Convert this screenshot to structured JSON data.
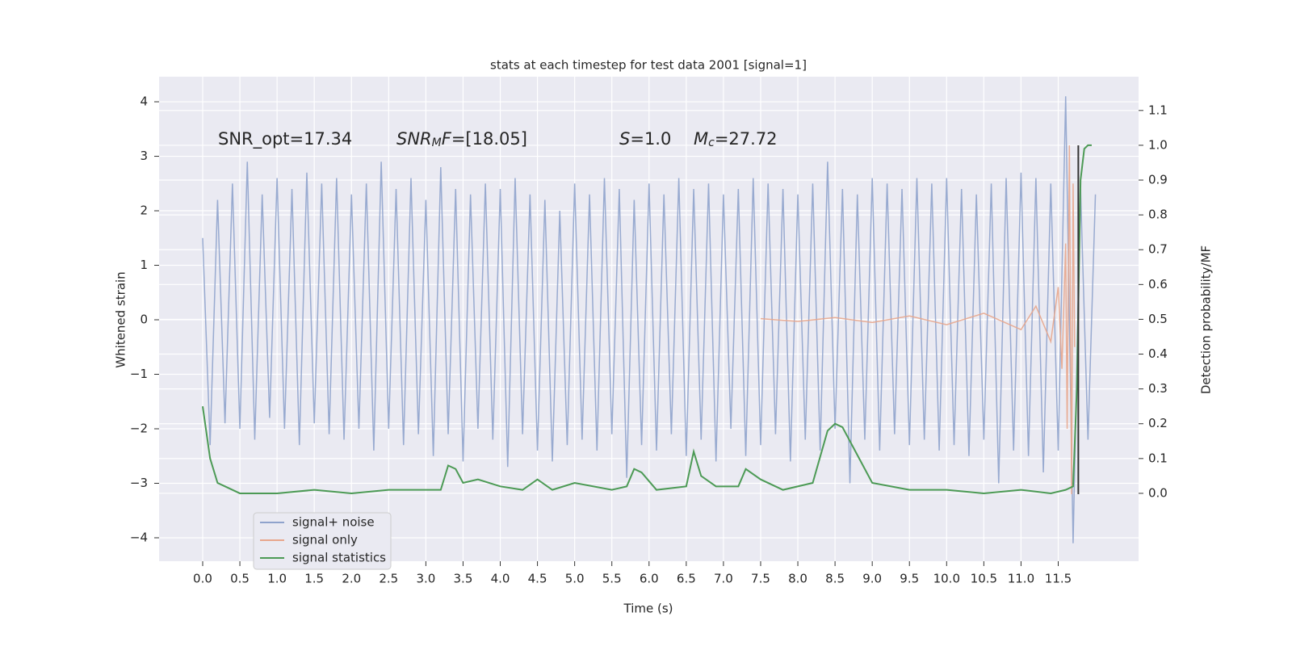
{
  "chart_data": {
    "type": "line",
    "title": "stats at each timestep for test data 2001 [signal=1]",
    "xlabel": "Time (s)",
    "ylabel": "Whitened strain",
    "y2label": "Detection probability/MF",
    "annotations": [
      [
        {
          "text": "SNR_opt=17.34"
        }
      ],
      [
        {
          "text": "SNR",
          "italic": true
        },
        {
          "text": "M",
          "italic": true,
          "sub": true
        },
        {
          "text": "F",
          "italic": true
        },
        {
          "text": "=[18.05]"
        }
      ],
      [
        {
          "text": "S",
          "italic": true
        },
        {
          "text": "=1.0"
        }
      ],
      [
        {
          "text": "M",
          "italic": true
        },
        {
          "text": "c",
          "italic": true,
          "sub": true
        },
        {
          "text": "=27.72"
        }
      ]
    ],
    "xlim": [
      -0.586,
      12.58
    ],
    "ylim": [
      -4.43,
      4.46
    ],
    "y2lim": [
      -0.195,
      1.197
    ],
    "grid": true,
    "legend": "lower left",
    "background": "#eaeaf2",
    "xticks": [
      {
        "value": 0,
        "label": "0.0"
      },
      {
        "value": 0.5,
        "label": "0.5"
      },
      {
        "value": 1,
        "label": "1.0"
      },
      {
        "value": 1.5,
        "label": "1.5"
      },
      {
        "value": 2,
        "label": "2.0"
      },
      {
        "value": 2.5,
        "label": "2.5"
      },
      {
        "value": 3,
        "label": "3.0"
      },
      {
        "value": 3.5,
        "label": "3.5"
      },
      {
        "value": 4,
        "label": "4.0"
      },
      {
        "value": 4.5,
        "label": "4.5"
      },
      {
        "value": 5,
        "label": "5.0"
      },
      {
        "value": 5.5,
        "label": "5.5"
      },
      {
        "value": 6,
        "label": "6.0"
      },
      {
        "value": 6.5,
        "label": "6.5"
      },
      {
        "value": 7,
        "label": "7.0"
      },
      {
        "value": 7.5,
        "label": "7.5"
      },
      {
        "value": 8,
        "label": "8.0"
      },
      {
        "value": 8.5,
        "label": "8.5"
      },
      {
        "value": 9,
        "label": "9.0"
      },
      {
        "value": 9.5,
        "label": "9.5"
      },
      {
        "value": 10,
        "label": "10.0"
      },
      {
        "value": 10.5,
        "label": "10.5"
      },
      {
        "value": 11,
        "label": "11.0"
      },
      {
        "value": 11.5,
        "label": "11.5"
      }
    ],
    "yticks": [
      {
        "value": -4,
        "label": "−4"
      },
      {
        "value": -3,
        "label": "−3"
      },
      {
        "value": -2,
        "label": "−2"
      },
      {
        "value": -1,
        "label": "−1"
      },
      0,
      1,
      2,
      3,
      4
    ],
    "y2ticks": [
      {
        "value": 0,
        "label": "0.0"
      },
      {
        "value": 0.1,
        "label": "0.1"
      },
      {
        "value": 0.2,
        "label": "0.2"
      },
      {
        "value": 0.3,
        "label": "0.3"
      },
      {
        "value": 0.4,
        "label": "0.4"
      },
      {
        "value": 0.5,
        "label": "0.5"
      },
      {
        "value": 0.6,
        "label": "0.6"
      },
      {
        "value": 0.7,
        "label": "0.7"
      },
      {
        "value": 0.8,
        "label": "0.8"
      },
      {
        "value": 0.9,
        "label": "0.9"
      },
      {
        "value": 1.0,
        "label": "1.0"
      },
      {
        "value": 1.1,
        "label": "1.1"
      }
    ],
    "series": [
      {
        "name": "signal+ noise",
        "color": "#8fa3cc",
        "x": [
          0,
          0.1,
          0.2,
          0.3,
          0.4,
          0.5,
          0.6,
          0.7,
          0.8,
          0.9,
          1,
          1.1,
          1.2,
          1.3,
          1.4,
          1.5,
          1.6,
          1.7,
          1.8,
          1.9,
          2,
          2.1,
          2.2,
          2.3,
          2.4,
          2.5,
          2.6,
          2.7,
          2.8,
          2.9,
          3,
          3.1,
          3.2,
          3.3,
          3.4,
          3.5,
          3.6,
          3.7,
          3.8,
          3.9,
          4,
          4.1,
          4.2,
          4.3,
          4.4,
          4.5,
          4.6,
          4.7,
          4.8,
          4.9,
          5,
          5.1,
          5.2,
          5.3,
          5.4,
          5.5,
          5.6,
          5.7,
          5.8,
          5.9,
          6,
          6.1,
          6.2,
          6.3,
          6.4,
          6.5,
          6.6,
          6.7,
          6.8,
          6.9,
          7,
          7.1,
          7.2,
          7.3,
          7.4,
          7.5,
          7.6,
          7.7,
          7.8,
          7.9,
          8,
          8.1,
          8.2,
          8.3,
          8.4,
          8.5,
          8.6,
          8.7,
          8.8,
          8.9,
          9,
          9.1,
          9.2,
          9.3,
          9.4,
          9.5,
          9.6,
          9.7,
          9.8,
          9.9,
          10,
          10.1,
          10.2,
          10.3,
          10.4,
          10.5,
          10.6,
          10.7,
          10.8,
          10.9,
          11,
          11.1,
          11.2,
          11.3,
          11.4,
          11.5,
          11.6,
          11.7,
          11.8,
          11.9,
          12
        ],
        "values": [
          1.5,
          -2.3,
          2.2,
          -1.9,
          2.5,
          -2.0,
          2.9,
          -2.2,
          2.3,
          -1.8,
          2.6,
          -2.0,
          2.4,
          -2.3,
          2.7,
          -1.9,
          2.5,
          -2.1,
          2.6,
          -2.2,
          2.3,
          -2.0,
          2.5,
          -2.4,
          2.9,
          -2.0,
          2.4,
          -2.3,
          2.6,
          -2.1,
          2.2,
          -2.5,
          2.8,
          -2.1,
          2.4,
          -2.6,
          2.3,
          -2.0,
          2.5,
          -2.2,
          2.4,
          -2.7,
          2.6,
          -2.1,
          2.3,
          -2.4,
          2.2,
          -2.6,
          2.0,
          -2.3,
          2.5,
          -2.2,
          2.3,
          -2.4,
          2.6,
          -2.1,
          2.4,
          -2.9,
          2.2,
          -2.3,
          2.5,
          -2.4,
          2.3,
          -2.1,
          2.6,
          -2.5,
          2.4,
          -2.2,
          2.5,
          -2.6,
          2.3,
          -2.0,
          2.4,
          -2.5,
          2.6,
          -2.3,
          2.5,
          -2.1,
          2.4,
          -2.6,
          2.3,
          -2.2,
          2.5,
          -2.4,
          2.9,
          -2.0,
          2.4,
          -3.0,
          2.3,
          -2.2,
          2.6,
          -2.4,
          2.5,
          -2.1,
          2.4,
          -2.3,
          2.6,
          -2.2,
          2.5,
          -2.4,
          2.6,
          -2.3,
          2.4,
          -2.5,
          2.3,
          -2.2,
          2.5,
          -3.0,
          2.6,
          -2.4,
          2.7,
          -2.5,
          2.6,
          -2.8,
          2.5,
          -2.4,
          4.1,
          -4.1,
          2.4,
          -2.2,
          2.3
        ]
      },
      {
        "name": "signal only",
        "color": "#e8a68c",
        "x": [
          7.5,
          8,
          8.5,
          9,
          9.5,
          10,
          10.5,
          11,
          11.2,
          11.4,
          11.5,
          11.55,
          11.6,
          11.62,
          11.65,
          11.68,
          11.7,
          11.72
        ],
        "values": [
          0.02,
          -0.03,
          0.04,
          -0.05,
          0.07,
          -0.09,
          0.12,
          -0.18,
          0.25,
          -0.4,
          0.6,
          -0.9,
          1.4,
          -2.0,
          3.2,
          -3.2,
          2.5,
          -0.5
        ]
      },
      {
        "name": "signal statistics",
        "color": "#4c9a55",
        "axis": "y2",
        "x": [
          0,
          0.1,
          0.2,
          0.3,
          0.5,
          0.8,
          1.0,
          1.5,
          2.0,
          2.5,
          3.0,
          3.2,
          3.3,
          3.4,
          3.5,
          3.7,
          4.0,
          4.3,
          4.5,
          4.7,
          5.0,
          5.5,
          5.7,
          5.8,
          5.9,
          6.1,
          6.5,
          6.6,
          6.7,
          6.9,
          7.2,
          7.3,
          7.5,
          7.8,
          8.2,
          8.4,
          8.5,
          8.6,
          8.8,
          9.0,
          9.5,
          10.0,
          10.5,
          11.0,
          11.4,
          11.6,
          11.7,
          11.75,
          11.8,
          11.85,
          11.9,
          11.95
        ],
        "values": [
          0.25,
          0.1,
          0.03,
          0.02,
          0.0,
          0.0,
          0.0,
          0.01,
          0.0,
          0.01,
          0.01,
          0.01,
          0.08,
          0.07,
          0.03,
          0.04,
          0.02,
          0.01,
          0.04,
          0.01,
          0.03,
          0.01,
          0.02,
          0.07,
          0.06,
          0.01,
          0.02,
          0.12,
          0.05,
          0.02,
          0.02,
          0.07,
          0.04,
          0.01,
          0.03,
          0.18,
          0.2,
          0.19,
          0.11,
          0.03,
          0.01,
          0.01,
          0.0,
          0.01,
          0.0,
          0.01,
          0.02,
          0.3,
          0.9,
          0.99,
          1.0,
          1.0
        ]
      }
    ],
    "marker": {
      "x": 11.77,
      "y": [
        -3.2,
        3.2
      ],
      "color": "#333333"
    }
  }
}
